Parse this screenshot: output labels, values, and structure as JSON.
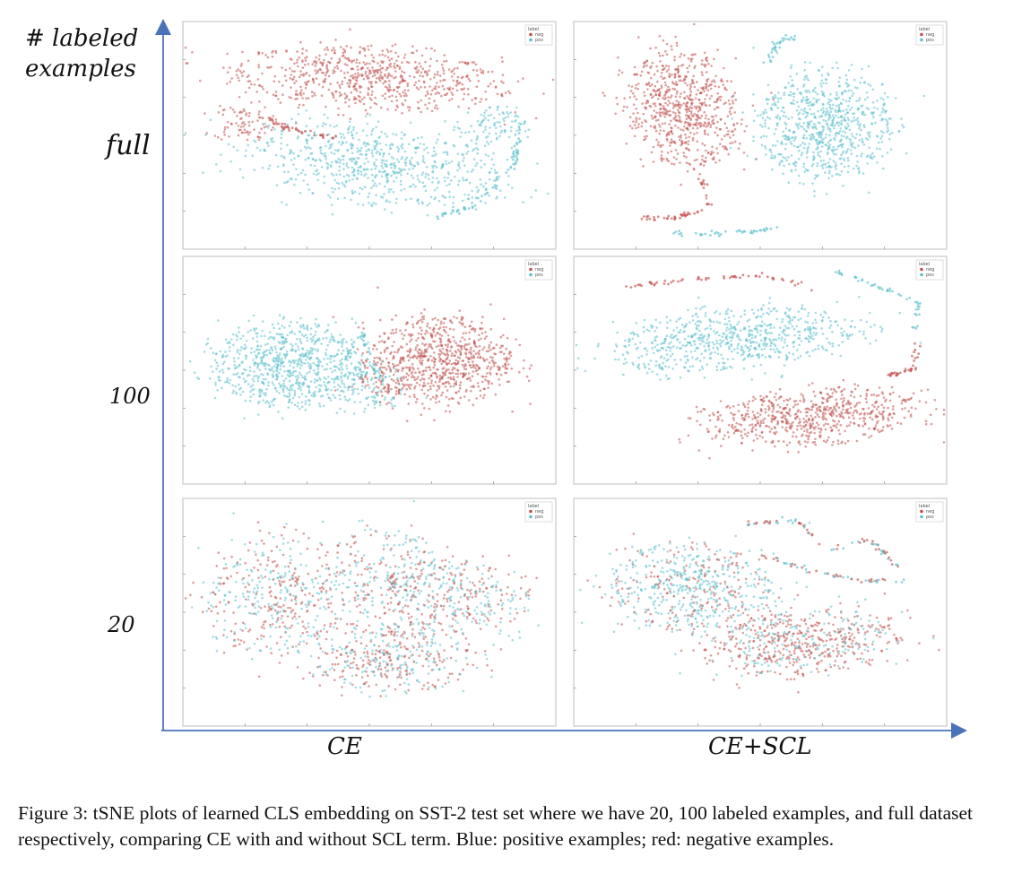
{
  "axis_titles": {
    "y_line1": "# labeled",
    "y_line2": "examples",
    "col_left": "CE",
    "col_right": "CE+SCL"
  },
  "row_labels": [
    "full",
    "100",
    "20"
  ],
  "colors": {
    "neg": "#c0504d",
    "pos": "#5bc0cc",
    "axis": "#4a72b8"
  },
  "caption": "Figure 3: tSNE plots of learned CLS embedding on SST-2 test set where we have 20, 100 labeled examples, and full dataset respectively, comparing CE with and without SCL term. Blue: positive examples; red: negative examples.",
  "chart_data": [
    {
      "type": "scatter",
      "panel": "full / CE",
      "legend": {
        "title": "label",
        "entries": [
          "neg",
          "pos"
        ]
      },
      "series": [
        {
          "name": "neg",
          "cluster": "upper elongated blob with thin tail to lower-left",
          "centroid": [
            -5,
            40
          ],
          "spread": [
            60,
            18
          ]
        },
        {
          "name": "pos",
          "cluster": "lower elongated blob with curved tail to lower-right",
          "centroid": [
            0,
            -28
          ],
          "spread": [
            55,
            22
          ]
        }
      ]
    },
    {
      "type": "scatter",
      "panel": "full / CE+SCL",
      "legend": {
        "title": "label",
        "entries": [
          "neg",
          "pos"
        ]
      },
      "series": [
        {
          "name": "neg",
          "cluster": "left teardrop blob with thin tail at bottom",
          "centroid": [
            -38,
            15
          ],
          "spread": [
            24,
            40
          ]
        },
        {
          "name": "pos",
          "cluster": "right large blob with thin tail at top",
          "centroid": [
            32,
            10
          ],
          "spread": [
            30,
            42
          ]
        }
      ]
    },
    {
      "type": "scatter",
      "panel": "100 / CE",
      "legend": {
        "title": "label",
        "entries": [
          "neg",
          "pos"
        ]
      },
      "series": [
        {
          "name": "pos",
          "cluster": "left blob",
          "centroid": [
            -38,
            0
          ],
          "spread": [
            28,
            24
          ]
        },
        {
          "name": "neg",
          "cluster": "right blob",
          "centroid": [
            32,
            5
          ],
          "spread": [
            28,
            26
          ]
        }
      ]
    },
    {
      "type": "scatter",
      "panel": "100 / CE+SCL",
      "legend": {
        "title": "label",
        "entries": [
          "neg",
          "pos"
        ]
      },
      "series": [
        {
          "name": "pos",
          "cluster": "upper elongated blob with thin curved tail",
          "centroid": [
            -10,
            20
          ],
          "spread": [
            55,
            20
          ]
        },
        {
          "name": "neg",
          "cluster": "lower elongated blob with thin tail",
          "centroid": [
            25,
            -35
          ],
          "spread": [
            45,
            16
          ]
        }
      ]
    },
    {
      "type": "scatter",
      "panel": "20 / CE",
      "legend": {
        "title": "label",
        "entries": [
          "neg",
          "pos"
        ]
      },
      "series": [
        {
          "name": "neg",
          "cluster": "mixed throughout, no separation",
          "centroid": [
            0,
            0
          ],
          "spread": [
            55,
            40
          ]
        },
        {
          "name": "pos",
          "cluster": "mixed throughout, no separation",
          "centroid": [
            0,
            0
          ],
          "spread": [
            55,
            40
          ]
        }
      ]
    },
    {
      "type": "scatter",
      "panel": "20 / CE+SCL",
      "legend": {
        "title": "label",
        "entries": [
          "neg",
          "pos"
        ]
      },
      "series": [
        {
          "name": "pos",
          "cluster": "upper-left blob, partially mixed",
          "centroid": [
            -30,
            15
          ],
          "spread": [
            30,
            25
          ]
        },
        {
          "name": "neg",
          "cluster": "lower-right blob, partially mixed",
          "centroid": [
            20,
            -25
          ],
          "spread": [
            40,
            18
          ]
        }
      ]
    }
  ]
}
